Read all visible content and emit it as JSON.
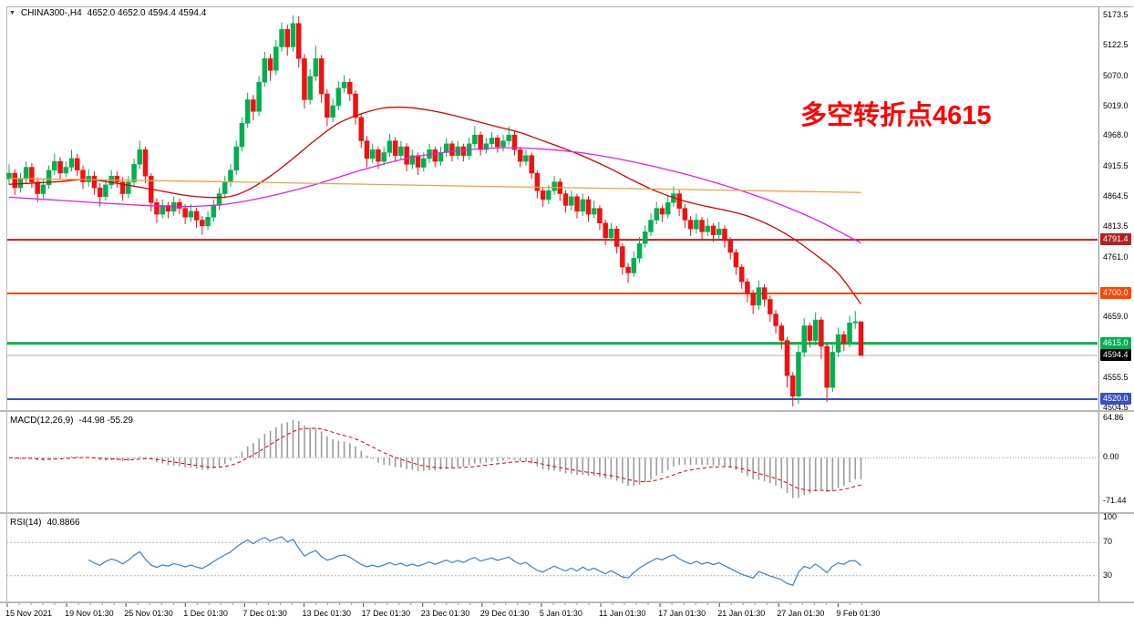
{
  "window": {
    "symbol_period": "CHINA300-,H4",
    "ohlc_text": "4652.0 4652.0 4594.4 4594.4"
  },
  "icons": {
    "dropdown_marker": "▼"
  },
  "annotation": {
    "text": "多空转折点4615",
    "color": "#ff0000"
  },
  "indicators": {
    "macd": {
      "name": "MACD(12,26,9)",
      "values": "-44.98 -55.29"
    },
    "rsi": {
      "name": "RSI(14)",
      "values": "40.8866"
    }
  },
  "chart_data": {
    "type": "candlestick",
    "symbol": "CHINA300-",
    "timeframe": "H4",
    "title": "CHINA300-,H4",
    "current_bar": {
      "open": 4652.0,
      "high": 4652.0,
      "low": 4594.4,
      "close": 4594.4
    },
    "style": {
      "up_color": "#00b050",
      "down_color": "#ee1212",
      "background": "#ffffff"
    },
    "price_axis": {
      "top_price": 5173.5,
      "bottom_price": 4504.5,
      "ticks": [
        5173.5,
        5122.5,
        5070.0,
        5019.0,
        4968.0,
        4915.5,
        4864.5,
        4813.5,
        4761.0,
        4659.0,
        4555.5,
        4504.5
      ]
    },
    "time_axis": {
      "labels": [
        "15 Nov 2021",
        "19 Nov 01:30",
        "25 Nov 01:30",
        "1 Dec 01:30",
        "7 Dec 01:30",
        "13 Dec 01:30",
        "17 Dec 01:30",
        "23 Dec 01:30",
        "29 Dec 01:30",
        "5 Jan 01:30",
        "11 Jan 01:30",
        "17 Jan 01:30",
        "21 Jan 01:30",
        "27 Jan 01:30",
        "9 Feb 01:30"
      ]
    },
    "hlines": [
      {
        "price": 4791.4,
        "color": "#b22222",
        "width": 2
      },
      {
        "price": 4700.0,
        "color": "#ff4500",
        "width": 2
      },
      {
        "price": 4615.0,
        "color": "#00b050",
        "width": 3
      },
      {
        "price": 4520.0,
        "color": "#3a4fc0",
        "width": 2
      }
    ],
    "current_price_line": {
      "price": 4594.4,
      "line_color": "#b0b0b0",
      "badge_color": "#000000"
    },
    "candles": [
      [
        4895,
        4920,
        4885,
        4905
      ],
      [
        4905,
        4912,
        4868,
        4880
      ],
      [
        4880,
        4905,
        4872,
        4895
      ],
      [
        4895,
        4925,
        4888,
        4915
      ],
      [
        4915,
        4922,
        4880,
        4890
      ],
      [
        4890,
        4898,
        4855,
        4870
      ],
      [
        4870,
        4895,
        4862,
        4885
      ],
      [
        4885,
        4918,
        4878,
        4910
      ],
      [
        4910,
        4938,
        4902,
        4925
      ],
      [
        4925,
        4932,
        4895,
        4905
      ],
      [
        4905,
        4925,
        4898,
        4915
      ],
      [
        4915,
        4945,
        4908,
        4930
      ],
      [
        4930,
        4938,
        4900,
        4910
      ],
      [
        4910,
        4918,
        4878,
        4890
      ],
      [
        4890,
        4912,
        4882,
        4900
      ],
      [
        4900,
        4908,
        4868,
        4880
      ],
      [
        4880,
        4888,
        4848,
        4865
      ],
      [
        4865,
        4895,
        4858,
        4885
      ],
      [
        4885,
        4910,
        4878,
        4900
      ],
      [
        4900,
        4908,
        4880,
        4890
      ],
      [
        4890,
        4898,
        4858,
        4870
      ],
      [
        4870,
        4900,
        4862,
        4890
      ],
      [
        4890,
        4930,
        4882,
        4920
      ],
      [
        4920,
        4960,
        4912,
        4945
      ],
      [
        4945,
        4950,
        4888,
        4900
      ],
      [
        4900,
        4905,
        4840,
        4855
      ],
      [
        4855,
        4862,
        4820,
        4835
      ],
      [
        4835,
        4860,
        4828,
        4850
      ],
      [
        4850,
        4856,
        4828,
        4840
      ],
      [
        4840,
        4865,
        4832,
        4855
      ],
      [
        4855,
        4862,
        4835,
        4845
      ],
      [
        4845,
        4852,
        4818,
        4830
      ],
      [
        4830,
        4852,
        4822,
        4840
      ],
      [
        4840,
        4846,
        4812,
        4825
      ],
      [
        4825,
        4832,
        4800,
        4815
      ],
      [
        4815,
        4840,
        4808,
        4830
      ],
      [
        4830,
        4860,
        4822,
        4850
      ],
      [
        4850,
        4880,
        4842,
        4870
      ],
      [
        4870,
        4900,
        4862,
        4890
      ],
      [
        4890,
        4920,
        4882,
        4910
      ],
      [
        4910,
        4960,
        4902,
        4950
      ],
      [
        4950,
        5000,
        4942,
        4990
      ],
      [
        4990,
        5042,
        4982,
        5030
      ],
      [
        5030,
        5038,
        4995,
        5010
      ],
      [
        5010,
        5070,
        5002,
        5060
      ],
      [
        5060,
        5112,
        5052,
        5100
      ],
      [
        5100,
        5108,
        5062,
        5080
      ],
      [
        5080,
        5132,
        5072,
        5120
      ],
      [
        5120,
        5162,
        5112,
        5150
      ],
      [
        5150,
        5158,
        5105,
        5120
      ],
      [
        5120,
        5173.5,
        5112,
        5160
      ],
      [
        5160,
        5172,
        5085,
        5100
      ],
      [
        5100,
        5108,
        5015,
        5030
      ],
      [
        5030,
        5082,
        5022,
        5070
      ],
      [
        5070,
        5122,
        5062,
        5100
      ],
      [
        5100,
        5106,
        5025,
        5040
      ],
      [
        5040,
        5048,
        4985,
        5000
      ],
      [
        5000,
        5032,
        4992,
        5020
      ],
      [
        5020,
        5062,
        5012,
        5050
      ],
      [
        5050,
        5072,
        5042,
        5060
      ],
      [
        5060,
        5066,
        5028,
        5040
      ],
      [
        5040,
        5046,
        4988,
        5000
      ],
      [
        5000,
        5006,
        4948,
        4960
      ],
      [
        4960,
        4968,
        4915,
        4930
      ],
      [
        4930,
        4955,
        4922,
        4945
      ],
      [
        4945,
        4950,
        4912,
        4925
      ],
      [
        4925,
        4950,
        4918,
        4940
      ],
      [
        4940,
        4972,
        4932,
        4960
      ],
      [
        4960,
        4966,
        4925,
        4935
      ],
      [
        4935,
        4960,
        4928,
        4950
      ],
      [
        4950,
        4956,
        4908,
        4920
      ],
      [
        4920,
        4945,
        4912,
        4935
      ],
      [
        4935,
        4940,
        4902,
        4915
      ],
      [
        4915,
        4940,
        4908,
        4930
      ],
      [
        4930,
        4955,
        4922,
        4945
      ],
      [
        4945,
        4950,
        4915,
        4925
      ],
      [
        4925,
        4950,
        4918,
        4940
      ],
      [
        4940,
        4965,
        4932,
        4955
      ],
      [
        4955,
        4960,
        4925,
        4935
      ],
      [
        4935,
        4960,
        4928,
        4950
      ],
      [
        4950,
        4955,
        4925,
        4935
      ],
      [
        4935,
        4965,
        4928,
        4955
      ],
      [
        4955,
        4985,
        4948,
        4970
      ],
      [
        4970,
        4976,
        4935,
        4945
      ],
      [
        4945,
        4965,
        4938,
        4955
      ],
      [
        4955,
        4975,
        4948,
        4965
      ],
      [
        4965,
        4970,
        4940,
        4950
      ],
      [
        4950,
        4970,
        4942,
        4960
      ],
      [
        4960,
        4985,
        4952,
        4970
      ],
      [
        4970,
        4976,
        4935,
        4945
      ],
      [
        4945,
        4950,
        4915,
        4925
      ],
      [
        4925,
        4945,
        4918,
        4935
      ],
      [
        4935,
        4940,
        4895,
        4905
      ],
      [
        4905,
        4910,
        4862,
        4875
      ],
      [
        4875,
        4882,
        4848,
        4860
      ],
      [
        4860,
        4885,
        4852,
        4875
      ],
      [
        4875,
        4900,
        4868,
        4890
      ],
      [
        4890,
        4896,
        4858,
        4870
      ],
      [
        4870,
        4876,
        4838,
        4850
      ],
      [
        4850,
        4875,
        4842,
        4865
      ],
      [
        4865,
        4870,
        4828,
        4840
      ],
      [
        4840,
        4870,
        4832,
        4860
      ],
      [
        4860,
        4866,
        4822,
        4835
      ],
      [
        4835,
        4858,
        4828,
        4845
      ],
      [
        4845,
        4850,
        4808,
        4820
      ],
      [
        4820,
        4826,
        4782,
        4795
      ],
      [
        4795,
        4820,
        4788,
        4810
      ],
      [
        4810,
        4815,
        4768,
        4780
      ],
      [
        4780,
        4786,
        4732,
        4745
      ],
      [
        4745,
        4752,
        4718,
        4735
      ],
      [
        4735,
        4772,
        4728,
        4760
      ],
      [
        4760,
        4796,
        4752,
        4785
      ],
      [
        4785,
        4816,
        4778,
        4805
      ],
      [
        4805,
        4836,
        4798,
        4825
      ],
      [
        4825,
        4856,
        4818,
        4845
      ],
      [
        4845,
        4850,
        4822,
        4835
      ],
      [
        4835,
        4866,
        4828,
        4855
      ],
      [
        4855,
        4882,
        4848,
        4870
      ],
      [
        4870,
        4876,
        4832,
        4845
      ],
      [
        4845,
        4852,
        4812,
        4825
      ],
      [
        4825,
        4832,
        4798,
        4810
      ],
      [
        4810,
        4836,
        4802,
        4825
      ],
      [
        4825,
        4830,
        4792,
        4805
      ],
      [
        4805,
        4828,
        4798,
        4815
      ],
      [
        4815,
        4820,
        4788,
        4800
      ],
      [
        4800,
        4822,
        4792,
        4810
      ],
      [
        4810,
        4816,
        4778,
        4790
      ],
      [
        4790,
        4796,
        4758,
        4770
      ],
      [
        4770,
        4776,
        4732,
        4745
      ],
      [
        4745,
        4750,
        4708,
        4720
      ],
      [
        4720,
        4726,
        4685,
        4700
      ],
      [
        4700,
        4706,
        4665,
        4680
      ],
      [
        4680,
        4722,
        4672,
        4710
      ],
      [
        4710,
        4716,
        4678,
        4690
      ],
      [
        4690,
        4696,
        4652,
        4665
      ],
      [
        4665,
        4672,
        4632,
        4645
      ],
      [
        4645,
        4650,
        4605,
        4620
      ],
      [
        4620,
        4626,
        4540,
        4560
      ],
      [
        4560,
        4566,
        4508,
        4525
      ],
      [
        4525,
        4612,
        4512,
        4600
      ],
      [
        4600,
        4658,
        4592,
        4645
      ],
      [
        4645,
        4650,
        4608,
        4620
      ],
      [
        4620,
        4668,
        4612,
        4655
      ],
      [
        4655,
        4660,
        4588,
        4610
      ],
      [
        4610,
        4615,
        4515,
        4540
      ],
      [
        4540,
        4612,
        4532,
        4600
      ],
      [
        4600,
        4642,
        4592,
        4630
      ],
      [
        4630,
        4636,
        4602,
        4615
      ],
      [
        4615,
        4662,
        4608,
        4650
      ],
      [
        4650,
        4670,
        4640,
        4652
      ],
      [
        4652,
        4652,
        4594.4,
        4594.4
      ]
    ],
    "moving_averages": [
      {
        "name": "fast-ma",
        "color": "#d40000",
        "points": [
          [
            0,
            4886
          ],
          [
            8,
            4890
          ],
          [
            14,
            4894
          ],
          [
            20,
            4886
          ],
          [
            26,
            4876
          ],
          [
            32,
            4866
          ],
          [
            38,
            4864
          ],
          [
            42,
            4876
          ],
          [
            46,
            4900
          ],
          [
            50,
            4930
          ],
          [
            54,
            4962
          ],
          [
            58,
            4990
          ],
          [
            62,
            5006
          ],
          [
            66,
            5016
          ],
          [
            70,
            5017
          ],
          [
            74,
            5012
          ],
          [
            78,
            5004
          ],
          [
            82,
            4994
          ],
          [
            86,
            4984
          ],
          [
            90,
            4974
          ],
          [
            94,
            4960
          ],
          [
            98,
            4946
          ],
          [
            102,
            4930
          ],
          [
            106,
            4912
          ],
          [
            110,
            4892
          ],
          [
            114,
            4874
          ],
          [
            118,
            4860
          ],
          [
            122,
            4850
          ],
          [
            126,
            4842
          ],
          [
            130,
            4832
          ],
          [
            134,
            4816
          ],
          [
            138,
            4794
          ],
          [
            142,
            4766
          ],
          [
            146,
            4734
          ],
          [
            150,
            4682
          ]
        ]
      },
      {
        "name": "mid-ma",
        "color": "#e020e0",
        "points": [
          [
            0,
            4864
          ],
          [
            10,
            4858
          ],
          [
            20,
            4852
          ],
          [
            30,
            4848
          ],
          [
            38,
            4852
          ],
          [
            46,
            4866
          ],
          [
            54,
            4886
          ],
          [
            62,
            4910
          ],
          [
            70,
            4930
          ],
          [
            78,
            4942
          ],
          [
            86,
            4948
          ],
          [
            94,
            4946
          ],
          [
            102,
            4938
          ],
          [
            110,
            4924
          ],
          [
            118,
            4906
          ],
          [
            126,
            4884
          ],
          [
            134,
            4858
          ],
          [
            142,
            4826
          ],
          [
            150,
            4786
          ]
        ]
      },
      {
        "name": "slow-ma",
        "color": "#e8a33d",
        "points": [
          [
            0,
            4896
          ],
          [
            40,
            4890
          ],
          [
            80,
            4883
          ],
          [
            120,
            4877
          ],
          [
            150,
            4872
          ]
        ]
      }
    ],
    "macd": {
      "params": [
        12,
        26,
        9
      ],
      "axis_ticks": [
        64.86,
        0,
        -71.44
      ],
      "histogram_color": "#9c9c9c",
      "signal_color": "#d40000"
    },
    "rsi": {
      "period": 14,
      "axis_ticks": [
        100,
        70,
        30
      ],
      "levels": [
        70,
        30
      ],
      "line_color": "#3e7fc1"
    }
  }
}
